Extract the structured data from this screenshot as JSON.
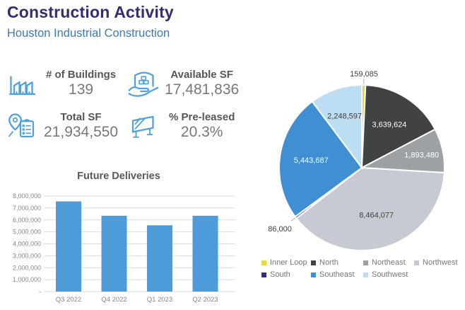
{
  "header": {
    "title": "Construction Activity",
    "subtitle": "Houston Industrial Construction"
  },
  "kpis": [
    {
      "label": "# of Buildings",
      "value": "139",
      "icon": "buildings-icon"
    },
    {
      "label": "Available SF",
      "value": "17,481,836",
      "icon": "warehouse-hand-icon"
    },
    {
      "label": "Total SF",
      "value": "21,934,550",
      "icon": "pin-clipboard-icon"
    },
    {
      "label": "% Pre-leased",
      "value": "20.3%",
      "icon": "sign-easel-icon"
    }
  ],
  "chart_data": [
    {
      "type": "bar",
      "title": "Future Deliveries",
      "categories": [
        "Q3 2022",
        "Q4 2022",
        "Q1 2023",
        "Q2 2023"
      ],
      "values": [
        7550000,
        6350000,
        5550000,
        6350000
      ],
      "xlabel": "",
      "ylabel": "",
      "ylim": [
        0,
        8000000
      ],
      "ytick_step": 1000000,
      "ytick_labels": [
        "-",
        "1,000,000",
        "2,000,000",
        "3,000,000",
        "4,000,000",
        "5,000,000",
        "6,000,000",
        "7,000,000",
        "8,000,000"
      ],
      "grid": true,
      "bar_color": "#4E9BD9",
      "axis_text_color": "#85878A",
      "grid_color": "#DBDBDB"
    },
    {
      "type": "pie",
      "title": "",
      "start_angle_deg": 0,
      "legend_position": "bottom",
      "slices": [
        {
          "name": "Inner Loop",
          "value": 159085,
          "label": "159,085",
          "color": "#E7DB3B",
          "label_style": "outside",
          "label_r": 1.13
        },
        {
          "name": "North",
          "value": 3639624,
          "label": "3,639,624",
          "color": "#414243",
          "label_style": "inside-white",
          "label_r": 0.62
        },
        {
          "name": "Northeast",
          "value": 1893480,
          "label": "1,893,480",
          "color": "#9EA1A3",
          "label_style": "inside-white",
          "label_r": 0.74
        },
        {
          "name": "Northwest",
          "value": 8464077,
          "label": "8,464,077",
          "color": "#C8CAD3",
          "label_style": "inside-dark",
          "label_r": 0.6
        },
        {
          "name": "South",
          "value": 86000,
          "label": "86,000",
          "color": "#2F3077",
          "label_style": "outside",
          "label_r": 1.24
        },
        {
          "name": "Southeast",
          "value": 5443687,
          "label": "5,443,687",
          "color": "#418FD3",
          "label_style": "inside-white",
          "label_r": 0.62
        },
        {
          "name": "Southwest",
          "value": 2248597,
          "label": "2,248,597",
          "color": "#BDDDF2",
          "label_style": "inside-dark",
          "label_r": 0.66
        }
      ]
    }
  ]
}
